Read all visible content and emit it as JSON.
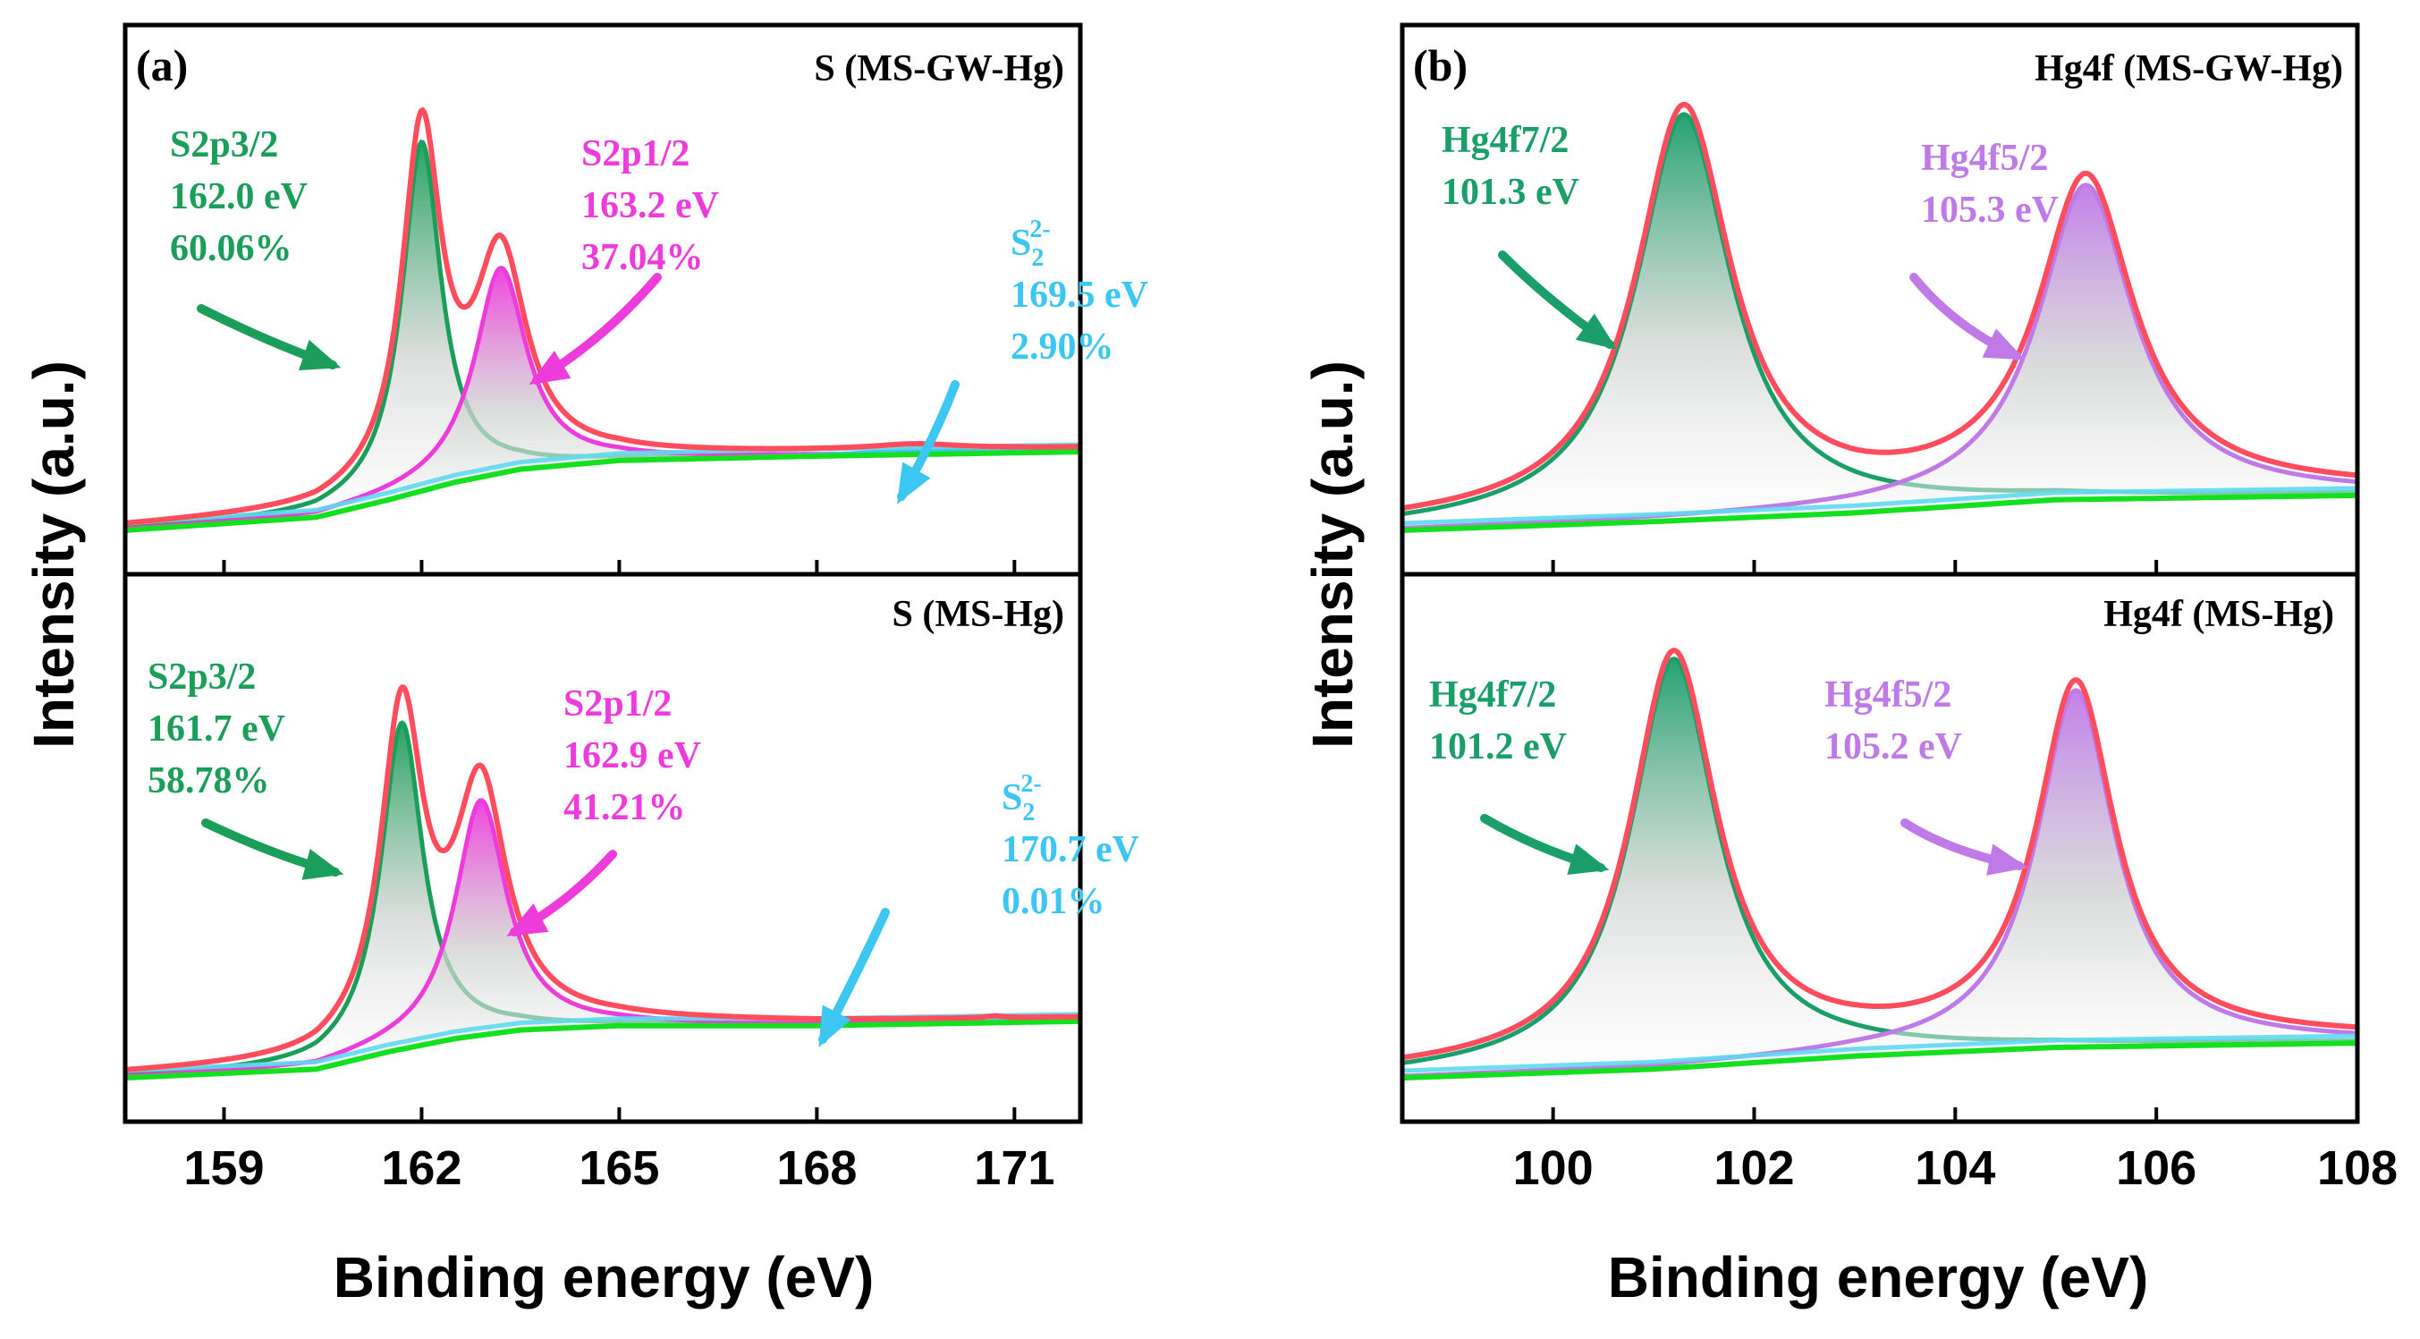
{
  "figure": {
    "panel_a": {
      "letter": "(a)",
      "ylabel": "Intensity (a.u.)",
      "xlabel": "Binding energy (eV)"
    },
    "panel_b": {
      "letter": "(b)",
      "ylabel": "Intensity (a.u.)",
      "xlabel": "Binding energy (eV)"
    }
  },
  "colors": {
    "envelope": "#ff4d5e",
    "s2p32": "#1b9e5a",
    "s2p12": "#ee3cdc",
    "s22": "#3cc6f2",
    "hg_f72": "#1a9e6a",
    "hg_f52": "#c07ae8",
    "baseline_green": "#14e01f",
    "baseline_cyan": "#5fd9f0",
    "fill_grey": "#cfd3d0",
    "axis": "#000000"
  },
  "chart_data": [
    {
      "type": "line",
      "id": "a-top",
      "title": "S (MS-GW-Hg)",
      "xlabel": "Binding energy (eV)",
      "ylabel": "Intensity (a.u.)",
      "xlim": [
        157.5,
        172
      ],
      "ylim": [
        0,
        1.12
      ],
      "x_reversed": false,
      "xticks": [
        159,
        162,
        165,
        168,
        171
      ],
      "show_xtick_labels": false,
      "baseline": [
        [
          157.5,
          0.0
        ],
        [
          160.4,
          0.03
        ],
        [
          161.5,
          0.07
        ],
        [
          162.5,
          0.11
        ],
        [
          163.5,
          0.14
        ],
        [
          165,
          0.16
        ],
        [
          168,
          0.17
        ],
        [
          172,
          0.18
        ]
      ],
      "peaks": [
        {
          "key": "p1",
          "name": "S2p3/2",
          "center": 162.0,
          "height": 0.8,
          "fwhm": 0.72,
          "color_key": "s2p32",
          "fill": true
        },
        {
          "key": "p2",
          "name": "S2p1/2",
          "center": 163.2,
          "height": 0.47,
          "fwhm": 0.95,
          "color_key": "s2p12",
          "fill": true
        },
        {
          "key": "p3",
          "name": "S22-",
          "center": 169.5,
          "height": 0.012,
          "fwhm": 1.6,
          "color_key": "s22",
          "fill": false
        }
      ],
      "annotations": [
        {
          "peak": "p1",
          "lines": [
            "S2p3/2",
            "162.0 eV",
            "60.06%"
          ],
          "color_key": "s2p32"
        },
        {
          "peak": "p2",
          "lines": [
            "S2p1/2",
            "163.2 eV",
            "37.04%"
          ],
          "color_key": "s2p12"
        },
        {
          "peak": "p3",
          "lines": [
            "S",
            "169.5 eV",
            "2.90%"
          ],
          "sup": "2-",
          "sub": "2",
          "color_key": "s22"
        }
      ]
    },
    {
      "type": "line",
      "id": "a-bottom",
      "title": "S (MS-Hg)",
      "xlabel": "Binding energy (eV)",
      "ylabel": "Intensity (a.u.)",
      "xlim": [
        157.5,
        172
      ],
      "ylim": [
        0,
        1.12
      ],
      "x_reversed": false,
      "xticks": [
        159,
        162,
        165,
        168,
        171
      ],
      "xticklabels": [
        "159",
        "162",
        "165",
        "168",
        "171"
      ],
      "show_xtick_labels": true,
      "baseline": [
        [
          157.5,
          0.0
        ],
        [
          160.4,
          0.02
        ],
        [
          161.5,
          0.06
        ],
        [
          162.5,
          0.09
        ],
        [
          163.5,
          0.11
        ],
        [
          165,
          0.12
        ],
        [
          168,
          0.12
        ],
        [
          172,
          0.13
        ]
      ],
      "peaks": [
        {
          "key": "p1",
          "name": "S2p3/2",
          "center": 161.7,
          "height": 0.75,
          "fwhm": 0.78,
          "color_key": "s2p32",
          "fill": true
        },
        {
          "key": "p2",
          "name": "S2p1/2",
          "center": 162.9,
          "height": 0.54,
          "fwhm": 0.95,
          "color_key": "s2p12",
          "fill": true
        },
        {
          "key": "p3",
          "name": "S22-",
          "center": 170.7,
          "height": 0.004,
          "fwhm": 0.3,
          "color_key": "s22",
          "fill": false
        }
      ],
      "annotations": [
        {
          "peak": "p1",
          "lines": [
            "S2p3/2",
            "161.7 eV",
            "58.78%"
          ],
          "color_key": "s2p32"
        },
        {
          "peak": "p2",
          "lines": [
            "S2p1/2",
            "162.9 eV",
            "41.21%"
          ],
          "color_key": "s2p12"
        },
        {
          "peak": "p3",
          "lines": [
            "S",
            "170.7 eV",
            "0.01%"
          ],
          "sup": "2-",
          "sub": "2",
          "color_key": "s22"
        }
      ]
    },
    {
      "type": "line",
      "id": "b-top",
      "title": "Hg4f (MS-GW-Hg)",
      "xlabel": "Binding energy (eV)",
      "ylabel": "Intensity (a.u.)",
      "xlim": [
        98.5,
        108
      ],
      "ylim": [
        0,
        1.12
      ],
      "x_reversed": false,
      "xticks": [
        100,
        102,
        104,
        106,
        108
      ],
      "show_xtick_labels": false,
      "baseline": [
        [
          98.5,
          0.0
        ],
        [
          101,
          0.02
        ],
        [
          103,
          0.04
        ],
        [
          105,
          0.07
        ],
        [
          108,
          0.08
        ]
      ],
      "peaks": [
        {
          "key": "p1",
          "name": "Hg4f7/2",
          "center": 101.3,
          "height": 0.93,
          "fwhm": 1.15,
          "color_key": "hg_f72",
          "fill": true
        },
        {
          "key": "p2",
          "name": "Hg4f5/2",
          "center": 105.3,
          "height": 0.72,
          "fwhm": 1.15,
          "color_key": "hg_f52",
          "fill": true
        }
      ],
      "annotations": [
        {
          "peak": "p1",
          "lines": [
            "Hg4f7/2",
            "101.3 eV"
          ],
          "color_key": "hg_f72"
        },
        {
          "peak": "p2",
          "lines": [
            "Hg4f5/2",
            "105.3 eV"
          ],
          "color_key": "hg_f52"
        }
      ]
    },
    {
      "type": "line",
      "id": "b-bottom",
      "title": "Hg4f (MS-Hg)",
      "xlabel": "Binding energy (eV)",
      "ylabel": "Intensity (a.u.)",
      "xlim": [
        98.5,
        108
      ],
      "ylim": [
        0,
        1.12
      ],
      "x_reversed": false,
      "xticks": [
        100,
        102,
        104,
        106,
        108
      ],
      "xticklabels": [
        "100",
        "102",
        "104",
        "106",
        "108"
      ],
      "show_xtick_labels": true,
      "baseline": [
        [
          98.5,
          0.0
        ],
        [
          101,
          0.02
        ],
        [
          103,
          0.05
        ],
        [
          105,
          0.07
        ],
        [
          108,
          0.08
        ]
      ],
      "peaks": [
        {
          "key": "p1",
          "name": "Hg4f7/2",
          "center": 101.2,
          "height": 0.94,
          "fwhm": 1.05,
          "color_key": "hg_f72",
          "fill": true
        },
        {
          "key": "p2",
          "name": "Hg4f5/2",
          "center": 105.2,
          "height": 0.82,
          "fwhm": 0.95,
          "color_key": "hg_f52",
          "fill": true
        }
      ],
      "annotations": [
        {
          "peak": "p1",
          "lines": [
            "Hg4f7/2",
            "101.2 eV"
          ],
          "color_key": "hg_f72"
        },
        {
          "peak": "p2",
          "lines": [
            "Hg4f5/2",
            "105.2 eV"
          ],
          "color_key": "hg_f52"
        }
      ]
    }
  ]
}
